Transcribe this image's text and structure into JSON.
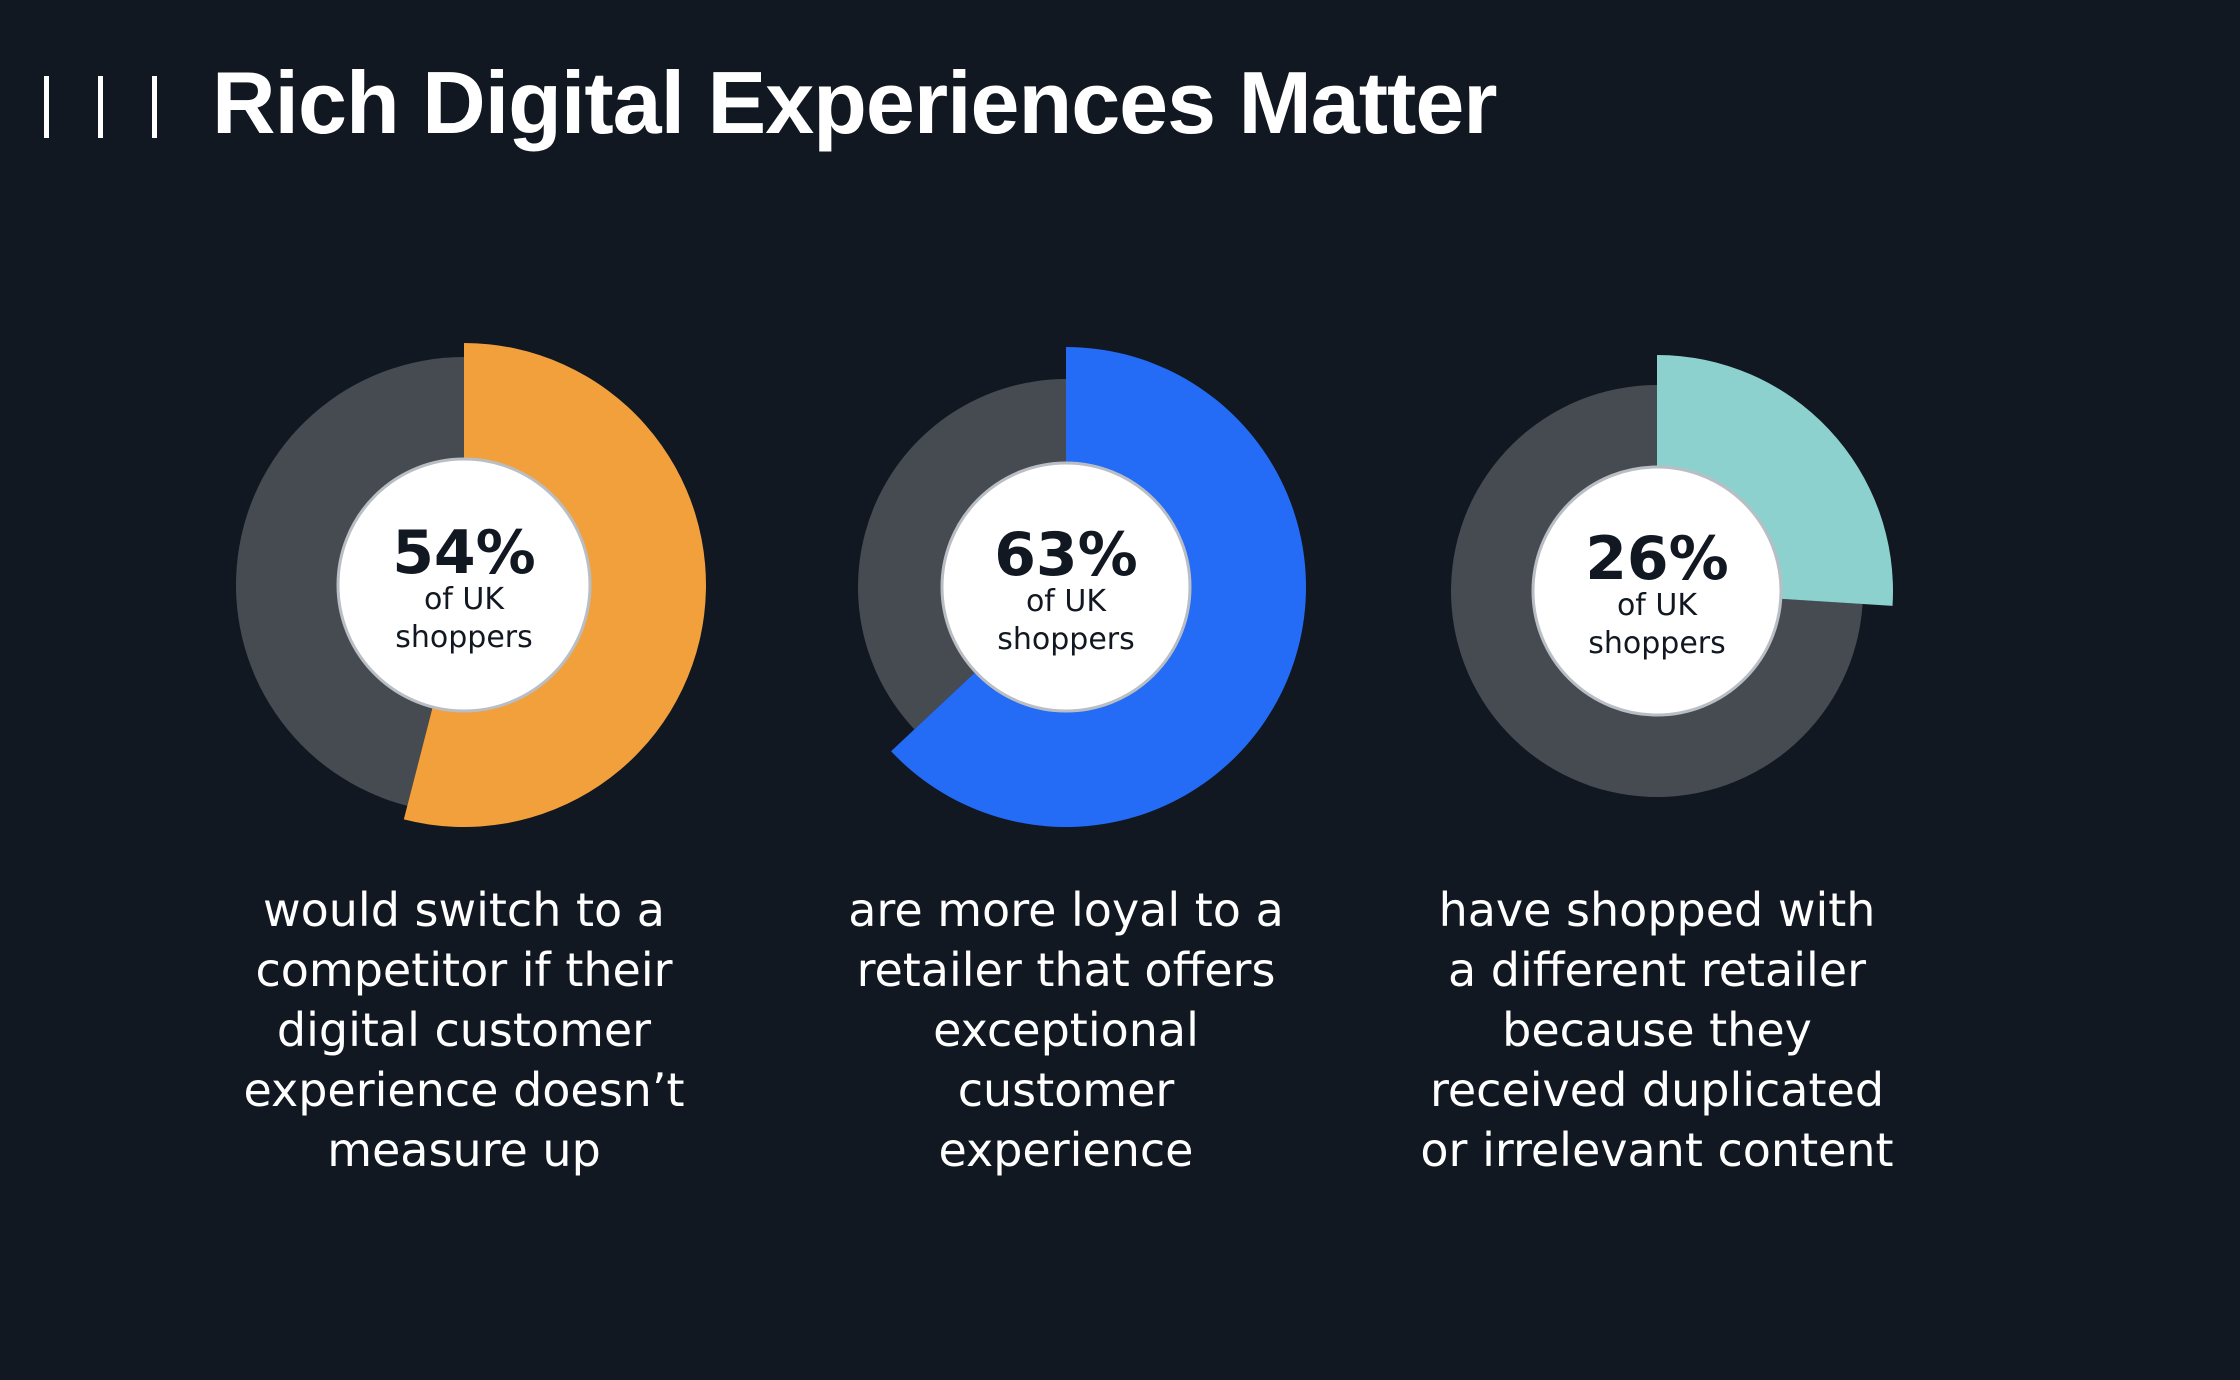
{
  "header": {
    "title": "Rich Digital Experiences Matter",
    "decoration_icon": "triple-vertical-bars-icon"
  },
  "chart_data": [
    {
      "type": "pie",
      "value": 54,
      "value_label": "54%",
      "sub_label_line1": "of UK",
      "sub_label_line2": "shoppers",
      "caption": "would switch to a competitor if their digital customer experience doesn’t measure up",
      "caption_lines": [
        "would switch to a",
        "competitor if their",
        "digital customer",
        "experience doesn’t",
        "measure up"
      ],
      "color": "#F2A03C",
      "remainder_color": "#464B52"
    },
    {
      "type": "pie",
      "value": 63,
      "value_label": "63%",
      "sub_label_line1": "of UK",
      "sub_label_line2": "shoppers",
      "caption": "are more loyal to a retailer that offers exceptional customer experience",
      "caption_lines": [
        "are more loyal to a",
        "retailer that offers",
        "exceptional",
        "customer",
        "experience"
      ],
      "color": "#246BF5",
      "remainder_color": "#464B52"
    },
    {
      "type": "pie",
      "value": 26,
      "value_label": "26%",
      "sub_label_line1": "of UK",
      "sub_label_line2": "shoppers",
      "caption": "have shopped with a different retailer because they received duplicated or irrelevant content",
      "caption_lines": [
        "have shopped with",
        "a different retailer",
        "because they",
        "received duplicated",
        "or irrelevant content"
      ],
      "color": "#8CD1CD",
      "remainder_color": "#464B52"
    }
  ]
}
